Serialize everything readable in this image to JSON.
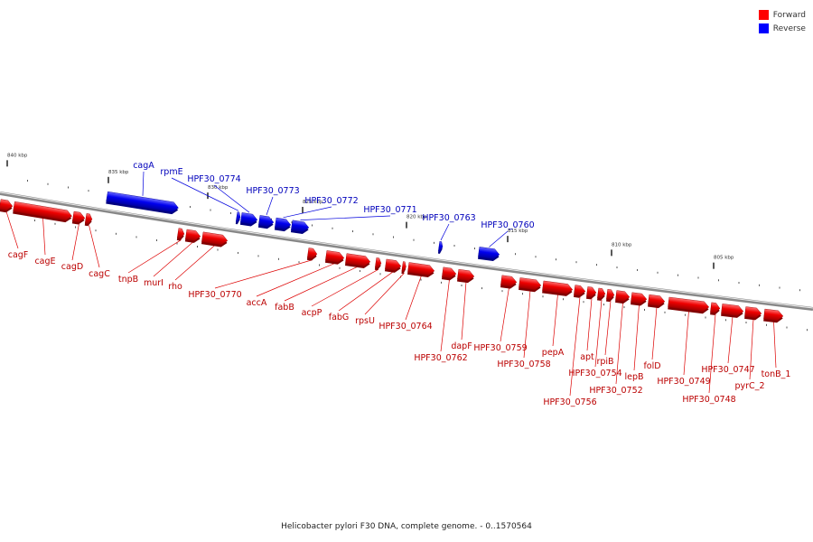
{
  "legend": [
    {
      "label": "Forward",
      "color": "#ff0000"
    },
    {
      "label": "Reverse",
      "color": "#0000ff"
    }
  ],
  "caption": "Helicobacter pylori F30 DNA, complete genome. - 0..1570564",
  "ticks": [
    "840 kbp",
    "835 kbp",
    "830 kbp",
    "825 kbp",
    "820 kbp",
    "815 kbp",
    "810 kbp",
    "805 kbp"
  ],
  "colors": {
    "forward": "#e00000",
    "reverse": "#0000e0",
    "forward_label": "#bb0000",
    "reverse_label": "#0000bb"
  },
  "genes": [
    {
      "name": "cagF",
      "strand": "forward"
    },
    {
      "name": "cagE",
      "strand": "forward"
    },
    {
      "name": "cagD",
      "strand": "forward"
    },
    {
      "name": "cagC",
      "strand": "forward"
    },
    {
      "name": "cagA",
      "strand": "reverse"
    },
    {
      "name": "tnpB",
      "strand": "forward"
    },
    {
      "name": "murI",
      "strand": "forward"
    },
    {
      "name": "rho",
      "strand": "forward"
    },
    {
      "name": "rpmE",
      "strand": "reverse"
    },
    {
      "name": "HPF30_0774",
      "strand": "reverse"
    },
    {
      "name": "HPF30_0773",
      "strand": "reverse"
    },
    {
      "name": "HPF30_0772",
      "strand": "reverse"
    },
    {
      "name": "HPF30_0771",
      "strand": "reverse"
    },
    {
      "name": "HPF30_0770",
      "strand": "forward"
    },
    {
      "name": "accA",
      "strand": "forward"
    },
    {
      "name": "fabB",
      "strand": "forward"
    },
    {
      "name": "acpP",
      "strand": "forward"
    },
    {
      "name": "fabG",
      "strand": "forward"
    },
    {
      "name": "rpsU",
      "strand": "forward"
    },
    {
      "name": "HPF30_0764",
      "strand": "forward"
    },
    {
      "name": "HPF30_0763",
      "strand": "reverse"
    },
    {
      "name": "HPF30_0762",
      "strand": "forward"
    },
    {
      "name": "dapF",
      "strand": "forward"
    },
    {
      "name": "HPF30_0760",
      "strand": "reverse"
    },
    {
      "name": "HPF30_0759",
      "strand": "forward"
    },
    {
      "name": "HPF30_0758",
      "strand": "forward"
    },
    {
      "name": "pepA",
      "strand": "forward"
    },
    {
      "name": "HPF30_0756",
      "strand": "forward"
    },
    {
      "name": "apt",
      "strand": "forward"
    },
    {
      "name": "HPF30_0754",
      "strand": "forward"
    },
    {
      "name": "rpiB",
      "strand": "forward"
    },
    {
      "name": "HPF30_0752",
      "strand": "forward"
    },
    {
      "name": "lepB",
      "strand": "forward"
    },
    {
      "name": "folD",
      "strand": "forward"
    },
    {
      "name": "HPF30_0749",
      "strand": "forward"
    },
    {
      "name": "HPF30_0748",
      "strand": "forward"
    },
    {
      "name": "HPF30_0747",
      "strand": "forward"
    },
    {
      "name": "pyrC_2",
      "strand": "forward"
    },
    {
      "name": "tonB_1",
      "strand": "forward"
    }
  ]
}
